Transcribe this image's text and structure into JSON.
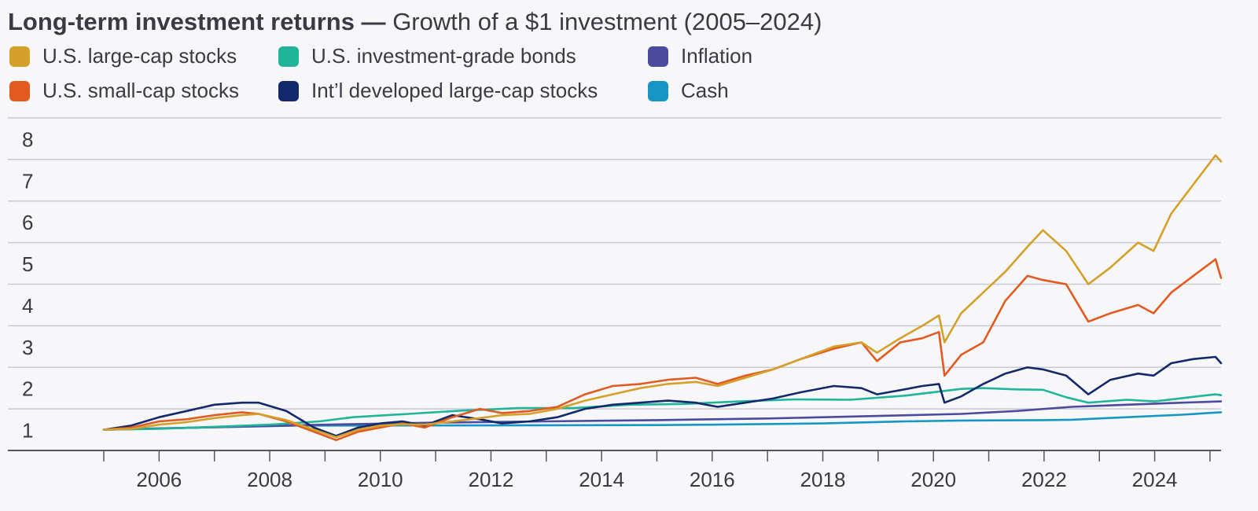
{
  "title": {
    "bold": "Long-term investment returns —",
    "rest": "Growth of a $1 investment (2005–2024)"
  },
  "legend": [
    {
      "label": "U.S. large-cap stocks",
      "color": "#d4a02a"
    },
    {
      "label": "U.S. investment-grade bonds",
      "color": "#1fb59a"
    },
    {
      "label": "Inflation",
      "color": "#4b4a9f"
    },
    {
      "label": "U.S. small-cap stocks",
      "color": "#e25a20"
    },
    {
      "label": "Int’l developed large-cap stocks",
      "color": "#13296b"
    },
    {
      "label": "Cash",
      "color": "#1795c4"
    }
  ],
  "chart_data": {
    "type": "line",
    "title": "Long-term investment returns — Growth of a $1 investment (2005–2024)",
    "xlabel": "",
    "ylabel": "",
    "xlim": [
      2005,
      2025.2
    ],
    "ylim": [
      0.5,
      8.5
    ],
    "x_ticks": [
      2006,
      2008,
      2010,
      2012,
      2014,
      2016,
      2018,
      2020,
      2022,
      2024
    ],
    "y_ticks": [
      1,
      2,
      3,
      4,
      5,
      6,
      7,
      8
    ],
    "grid": true,
    "series": [
      {
        "name": "U.S. large-cap stocks",
        "color": "#d4a02a",
        "x": [
          2005,
          2005.5,
          2006,
          2006.5,
          2007,
          2007.5,
          2007.8,
          2008.3,
          2008.8,
          2009.2,
          2009.6,
          2010,
          2010.4,
          2010.8,
          2011.3,
          2011.8,
          2012.2,
          2012.7,
          2013.2,
          2013.7,
          2014.2,
          2014.7,
          2015.2,
          2015.7,
          2016.1,
          2016.6,
          2017.1,
          2017.6,
          2018.2,
          2018.7,
          2018.98,
          2019.4,
          2019.8,
          2020.1,
          2020.2,
          2020.5,
          2020.9,
          2021.3,
          2021.7,
          2021.98,
          2022.4,
          2022.8,
          2023.2,
          2023.7,
          2023.98,
          2024.3,
          2024.7,
          2025.1,
          2025.2
        ],
        "y": [
          1.0,
          1.02,
          1.12,
          1.18,
          1.28,
          1.35,
          1.38,
          1.23,
          1.0,
          0.82,
          1.0,
          1.1,
          1.13,
          1.12,
          1.2,
          1.28,
          1.35,
          1.38,
          1.5,
          1.7,
          1.85,
          2.0,
          2.1,
          2.15,
          2.05,
          2.25,
          2.45,
          2.7,
          3.0,
          3.1,
          2.85,
          3.2,
          3.5,
          3.75,
          3.1,
          3.8,
          4.3,
          4.8,
          5.4,
          5.8,
          5.3,
          4.5,
          4.9,
          5.5,
          5.3,
          6.2,
          6.9,
          7.6,
          7.45
        ]
      },
      {
        "name": "U.S. small-cap stocks",
        "color": "#e25a20",
        "x": [
          2005,
          2005.5,
          2006,
          2006.5,
          2007,
          2007.5,
          2007.8,
          2008.3,
          2008.8,
          2009.2,
          2009.6,
          2010,
          2010.4,
          2010.8,
          2011.3,
          2011.8,
          2012.2,
          2012.7,
          2013.2,
          2013.7,
          2014.2,
          2014.7,
          2015.2,
          2015.7,
          2016.1,
          2016.6,
          2017.1,
          2017.6,
          2018.2,
          2018.7,
          2018.98,
          2019.4,
          2019.8,
          2020.1,
          2020.2,
          2020.5,
          2020.9,
          2021.3,
          2021.7,
          2021.98,
          2022.4,
          2022.8,
          2023.2,
          2023.7,
          2023.98,
          2024.3,
          2024.7,
          2025.1,
          2025.2
        ],
        "y": [
          1.0,
          1.05,
          1.2,
          1.25,
          1.35,
          1.42,
          1.38,
          1.2,
          0.95,
          0.75,
          0.95,
          1.05,
          1.15,
          1.05,
          1.3,
          1.5,
          1.4,
          1.45,
          1.55,
          1.85,
          2.05,
          2.1,
          2.2,
          2.25,
          2.1,
          2.3,
          2.45,
          2.7,
          2.95,
          3.1,
          2.65,
          3.1,
          3.2,
          3.35,
          2.3,
          2.8,
          3.1,
          4.1,
          4.7,
          4.6,
          4.5,
          3.6,
          3.8,
          4.0,
          3.8,
          4.3,
          4.7,
          5.1,
          4.65
        ]
      },
      {
        "name": "Int’l developed large-cap stocks",
        "color": "#13296b",
        "x": [
          2005,
          2005.5,
          2006,
          2006.5,
          2007,
          2007.5,
          2007.8,
          2008.3,
          2008.8,
          2009.2,
          2009.6,
          2010,
          2010.4,
          2010.8,
          2011.3,
          2011.8,
          2012.2,
          2012.7,
          2013.2,
          2013.7,
          2014.2,
          2014.7,
          2015.2,
          2015.7,
          2016.1,
          2016.6,
          2017.1,
          2017.6,
          2018.2,
          2018.7,
          2018.98,
          2019.4,
          2019.8,
          2020.1,
          2020.2,
          2020.5,
          2020.9,
          2021.3,
          2021.7,
          2021.98,
          2022.4,
          2022.8,
          2023.2,
          2023.7,
          2023.98,
          2024.3,
          2024.7,
          2025.1,
          2025.2
        ],
        "y": [
          1.0,
          1.1,
          1.3,
          1.45,
          1.6,
          1.65,
          1.65,
          1.45,
          1.05,
          0.85,
          1.05,
          1.15,
          1.2,
          1.1,
          1.35,
          1.25,
          1.15,
          1.2,
          1.3,
          1.5,
          1.6,
          1.65,
          1.7,
          1.65,
          1.55,
          1.65,
          1.75,
          1.9,
          2.05,
          2.0,
          1.85,
          1.95,
          2.05,
          2.1,
          1.65,
          1.8,
          2.1,
          2.35,
          2.5,
          2.45,
          2.3,
          1.85,
          2.2,
          2.35,
          2.3,
          2.6,
          2.7,
          2.75,
          2.6
        ]
      },
      {
        "name": "U.S. investment-grade bonds",
        "color": "#1fb59a",
        "x": [
          2005,
          2006,
          2007,
          2008,
          2008.9,
          2009.5,
          2010.5,
          2011.5,
          2012.5,
          2013.5,
          2014.5,
          2015.5,
          2016.5,
          2017.5,
          2018.5,
          2019.5,
          2020.5,
          2020.9,
          2021.5,
          2021.98,
          2022.4,
          2022.8,
          2023.5,
          2024,
          2024.5,
          2025.1,
          2025.2
        ],
        "y": [
          1.0,
          1.02,
          1.07,
          1.12,
          1.2,
          1.3,
          1.38,
          1.46,
          1.52,
          1.52,
          1.6,
          1.62,
          1.68,
          1.73,
          1.72,
          1.82,
          1.98,
          2.0,
          1.97,
          1.96,
          1.78,
          1.65,
          1.72,
          1.68,
          1.76,
          1.85,
          1.83
        ]
      },
      {
        "name": "Inflation",
        "color": "#4b4a9f",
        "x": [
          2005,
          2007,
          2009,
          2011,
          2013,
          2015,
          2017,
          2019,
          2020.5,
          2021.5,
          2022.5,
          2023.5,
          2024.5,
          2025.2
        ],
        "y": [
          1.0,
          1.06,
          1.12,
          1.17,
          1.2,
          1.23,
          1.27,
          1.33,
          1.38,
          1.45,
          1.55,
          1.6,
          1.65,
          1.68
        ]
      },
      {
        "name": "Cash",
        "color": "#1795c4",
        "x": [
          2005,
          2007,
          2008.5,
          2010,
          2015,
          2016,
          2018,
          2019.5,
          2020.5,
          2022,
          2022.5,
          2023.5,
          2024.5,
          2025.2
        ],
        "y": [
          1.0,
          1.06,
          1.1,
          1.1,
          1.11,
          1.12,
          1.15,
          1.2,
          1.22,
          1.23,
          1.24,
          1.3,
          1.36,
          1.42
        ]
      }
    ]
  }
}
